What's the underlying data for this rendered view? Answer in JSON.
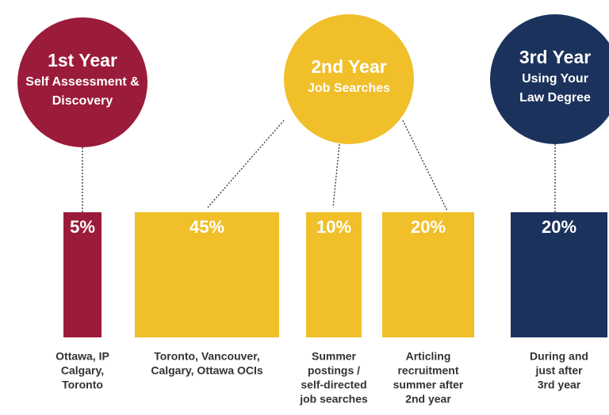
{
  "circles": [
    {
      "title": "1st Year",
      "lines": [
        "Self Assessment &",
        "Discovery"
      ]
    },
    {
      "title": "2nd Year",
      "lines": [
        "Job Searches"
      ]
    },
    {
      "title": "3rd Year",
      "lines": [
        "Using Your",
        "Law Degree"
      ]
    }
  ],
  "boxes": [
    {
      "label": "5%",
      "caption": [
        "Ottawa, IP",
        "Calgary,",
        "Toronto"
      ]
    },
    {
      "label": "45%",
      "caption": [
        "Toronto, Vancouver,",
        "Calgary, Ottawa OCIs"
      ]
    },
    {
      "label": "10%",
      "caption": [
        "Summer",
        "postings /",
        "self-directed",
        "job searches"
      ]
    },
    {
      "label": "20%",
      "caption": [
        "Articling",
        "recruitment",
        "summer after",
        "2nd year"
      ]
    },
    {
      "label": "20%",
      "caption": [
        "During and",
        "just after",
        "3rd year"
      ]
    }
  ]
}
